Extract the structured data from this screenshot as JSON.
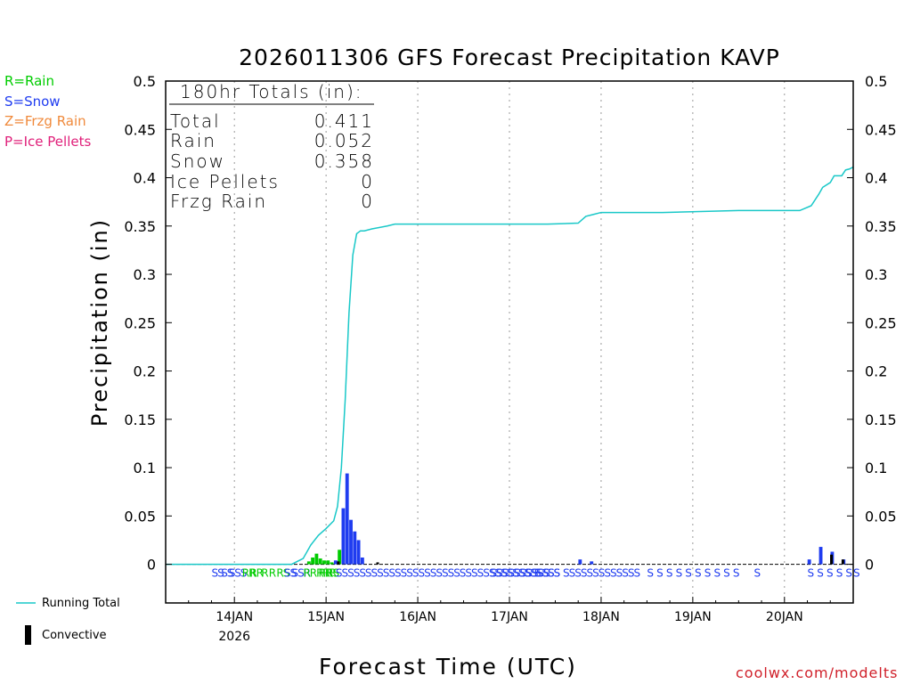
{
  "title": "2026011306 GFS Forecast Precipitation KAVP",
  "legend": {
    "rain": "R=Rain",
    "snow": "S=Snow",
    "frzg": "Z=Frzg Rain",
    "ice": "P=Ice Pellets",
    "running_total": "Running Total",
    "convective": "Convective"
  },
  "colors": {
    "rain": "#00cc00",
    "snow": "#1f3cf0",
    "frzg": "#f08a3c",
    "ice": "#e0207a",
    "running": "#19c8c8",
    "convective": "#000000",
    "credit": "#d0202a"
  },
  "totals": {
    "header": "180hr Totals (in):",
    "rows": [
      {
        "label": "Total",
        "value": "0.411"
      },
      {
        "label": "Rain",
        "value": "0.052"
      },
      {
        "label": "Snow",
        "value": "0.358"
      },
      {
        "label": "Ice Pellets",
        "value": "0"
      },
      {
        "label": "Frzg Rain",
        "value": "0"
      }
    ]
  },
  "credit": "coolwx.com/modelts",
  "chart_data": {
    "type": "bar",
    "title": "2026011306 GFS Forecast Precipitation KAVP",
    "xlabel": "Forecast Time (UTC)",
    "ylabel": "Precipitation (in)",
    "ylim": [
      -0.04,
      0.5
    ],
    "y_ticks": [
      0,
      0.05,
      0.1,
      0.15,
      0.2,
      0.25,
      0.3,
      0.35,
      0.4,
      0.45,
      0.5
    ],
    "y_tick_labels": [
      "0",
      "0.05",
      "0.1",
      "0.15",
      "0.2",
      "0.25",
      "0.3",
      "0.35",
      "0.4",
      "0.45",
      "0.5"
    ],
    "x_range_hours": [
      0,
      180
    ],
    "x_ticks": [
      {
        "hour": 18,
        "label": "14JAN",
        "sublabel": "2026"
      },
      {
        "hour": 42,
        "label": "15JAN",
        "sublabel": ""
      },
      {
        "hour": 66,
        "label": "16JAN",
        "sublabel": ""
      },
      {
        "hour": 90,
        "label": "17JAN",
        "sublabel": ""
      },
      {
        "hour": 114,
        "label": "18JAN",
        "sublabel": ""
      },
      {
        "hour": 138,
        "label": "19JAN",
        "sublabel": ""
      },
      {
        "hour": 162,
        "label": "20JAN",
        "sublabel": ""
      }
    ],
    "bars": [
      {
        "hour": 37.5,
        "value": 0.003,
        "type": "rain"
      },
      {
        "hour": 38.5,
        "value": 0.007,
        "type": "rain"
      },
      {
        "hour": 39.5,
        "value": 0.011,
        "type": "rain"
      },
      {
        "hour": 40.5,
        "value": 0.006,
        "type": "rain"
      },
      {
        "hour": 41.5,
        "value": 0.004,
        "type": "rain"
      },
      {
        "hour": 42.5,
        "value": 0.004,
        "type": "rain"
      },
      {
        "hour": 43.5,
        "value": 0.002,
        "type": "rain"
      },
      {
        "hour": 44.5,
        "value": 0.004,
        "type": "snow"
      },
      {
        "hour": 45.5,
        "value": 0.015,
        "type": "rain"
      },
      {
        "hour": 46.5,
        "value": 0.058,
        "type": "snow"
      },
      {
        "hour": 47.5,
        "value": 0.094,
        "type": "snow"
      },
      {
        "hour": 48.5,
        "value": 0.046,
        "type": "snow"
      },
      {
        "hour": 49.5,
        "value": 0.034,
        "type": "snow"
      },
      {
        "hour": 50.5,
        "value": 0.025,
        "type": "snow"
      },
      {
        "hour": 51.5,
        "value": 0.007,
        "type": "snow"
      },
      {
        "hour": 108.5,
        "value": 0.005,
        "type": "snow"
      },
      {
        "hour": 111.5,
        "value": 0.003,
        "type": "snow"
      },
      {
        "hour": 168.5,
        "value": 0.005,
        "type": "snow"
      },
      {
        "hour": 171.5,
        "value": 0.018,
        "type": "snow"
      },
      {
        "hour": 174.5,
        "value": 0.013,
        "type": "snow"
      },
      {
        "hour": 177.5,
        "value": 0.005,
        "type": "snow"
      }
    ],
    "convective": [
      {
        "hour": 45.2,
        "value": 0.003
      },
      {
        "hour": 55.5,
        "value": 0.002
      },
      {
        "hour": 174.3,
        "value": 0.01
      },
      {
        "hour": 177.3,
        "value": 0.005
      }
    ],
    "running_total": {
      "hours": [
        0,
        33,
        36,
        38,
        40,
        42,
        44,
        45,
        46,
        47,
        48,
        49,
        50,
        51,
        52,
        54,
        58,
        60,
        66,
        80,
        100,
        108,
        110,
        112,
        114,
        120,
        130,
        140,
        150,
        160,
        163,
        166,
        169,
        171,
        172,
        174,
        175,
        177,
        178,
        179,
        180
      ],
      "values": [
        0,
        0,
        0.006,
        0.02,
        0.03,
        0.037,
        0.045,
        0.06,
        0.1,
        0.17,
        0.26,
        0.32,
        0.342,
        0.345,
        0.345,
        0.347,
        0.35,
        0.352,
        0.352,
        0.352,
        0.352,
        0.353,
        0.36,
        0.362,
        0.364,
        0.364,
        0.364,
        0.365,
        0.366,
        0.366,
        0.366,
        0.366,
        0.371,
        0.383,
        0.39,
        0.395,
        0.402,
        0.402,
        0.408,
        0.409,
        0.411
      ]
    },
    "ptype_labels": [
      {
        "hour": 12,
        "text": "SS"
      },
      {
        "hour": 14.5,
        "text": "SS"
      },
      {
        "hour": 16.5,
        "text": "S"
      },
      {
        "hour": 18,
        "text": "SS"
      },
      {
        "hour": 20,
        "text": "RR"
      },
      {
        "hour": 22,
        "text": "RR"
      },
      {
        "hour": 25,
        "text": "R"
      },
      {
        "hour": 27,
        "text": "R"
      },
      {
        "hour": 29,
        "text": "RS"
      },
      {
        "hour": 31,
        "text": "SS"
      },
      {
        "hour": 33,
        "text": "SSR"
      },
      {
        "hour": 36,
        "text": "RRRRR"
      },
      {
        "hour": 40,
        "text": "RR"
      },
      {
        "hour": 42,
        "text": "RS"
      },
      {
        "hour": 44.5,
        "text": "SSSSSSSSSSSSSSSSSSSSSSSSSSSSSSSSSSSSSS"
      },
      {
        "hour": 85,
        "text": "SSSSSSSSSS"
      },
      {
        "hour": 94,
        "text": "S"
      },
      {
        "hour": 96.5,
        "text": "S"
      },
      {
        "hour": 100,
        "text": "SS"
      },
      {
        "hour": 104,
        "text": "SSSSSSSSSSSSS"
      },
      {
        "hour": 126,
        "text": "S"
      },
      {
        "hour": 128.5,
        "text": "S"
      },
      {
        "hour": 131,
        "text": "S"
      },
      {
        "hour": 133.5,
        "text": "S"
      },
      {
        "hour": 136,
        "text": "S"
      },
      {
        "hour": 138.5,
        "text": "S"
      },
      {
        "hour": 141,
        "text": "S"
      },
      {
        "hour": 143.5,
        "text": "S"
      },
      {
        "hour": 146,
        "text": "S"
      },
      {
        "hour": 148.5,
        "text": "S"
      },
      {
        "hour": 154,
        "text": "S"
      },
      {
        "hour": 168,
        "text": "S"
      },
      {
        "hour": 170.5,
        "text": "S"
      },
      {
        "hour": 173,
        "text": "S"
      },
      {
        "hour": 175.5,
        "text": "S"
      },
      {
        "hour": 178,
        "text": "S"
      },
      {
        "hour": 180,
        "text": "S"
      }
    ]
  }
}
